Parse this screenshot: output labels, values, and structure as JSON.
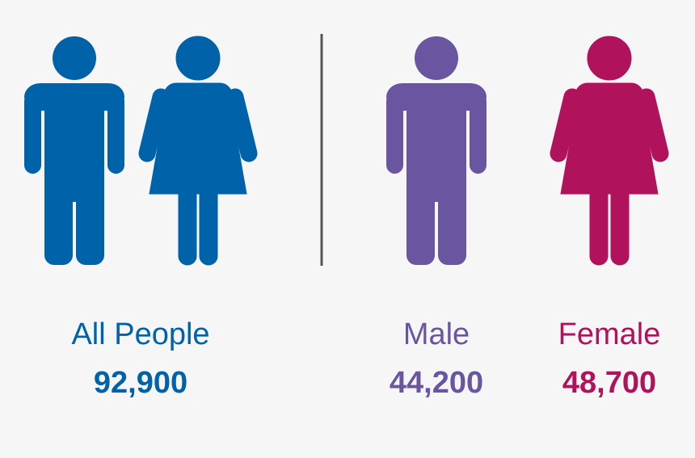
{
  "groups": [
    {
      "label": "All People",
      "value": "92,900"
    },
    {
      "label": "Male",
      "value": "44,200"
    },
    {
      "label": "Female",
      "value": "48,700"
    }
  ]
}
